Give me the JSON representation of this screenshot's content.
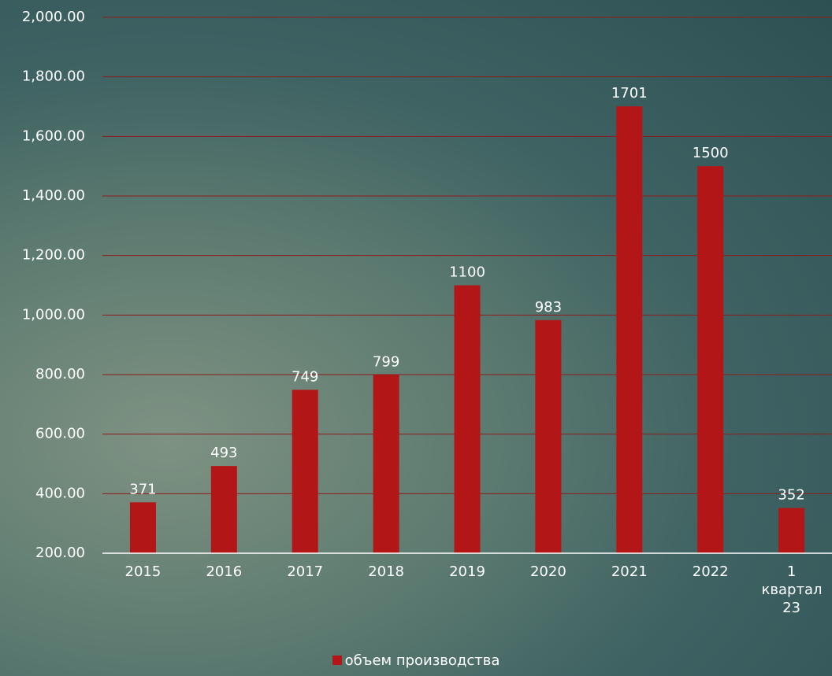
{
  "chart_data": {
    "type": "bar",
    "categories": [
      "2015",
      "2016",
      "2017",
      "2018",
      "2019",
      "2020",
      "2021",
      "2022",
      "1 квартал 23"
    ],
    "series": [
      {
        "name": "объем производства",
        "color": "#b31616",
        "values": [
          371,
          493,
          749,
          799,
          1100,
          983,
          1701,
          1500,
          352
        ]
      }
    ],
    "ylim": [
      200,
      2000
    ],
    "yticks": [
      {
        "value": 200,
        "label": "200.00"
      },
      {
        "value": 400,
        "label": "400.00"
      },
      {
        "value": 600,
        "label": "600.00"
      },
      {
        "value": 800,
        "label": "800.00"
      },
      {
        "value": 1000,
        "label": "1,000.00"
      },
      {
        "value": 1200,
        "label": "1,200.00"
      },
      {
        "value": 1400,
        "label": "1,400.00"
      },
      {
        "value": 1600,
        "label": "1,600.00"
      },
      {
        "value": 1800,
        "label": "1,800.00"
      },
      {
        "value": 2000,
        "label": "2,000.00"
      }
    ],
    "grid": true,
    "grid_color": "#8e1c1c",
    "legend": "bottom"
  }
}
